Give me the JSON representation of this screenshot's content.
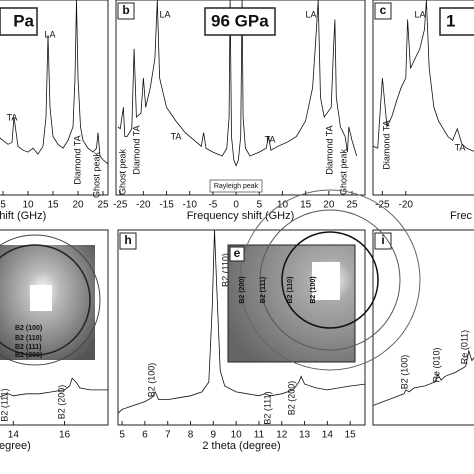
{
  "chart_data": [
    {
      "type": "line",
      "title": "Pa",
      "xlabel": "shift (GHz)",
      "xlim": [
        4,
        26
      ],
      "ylim": [
        0,
        100
      ],
      "xticks": [
        5,
        10,
        15,
        20,
        25
      ],
      "x": [
        4,
        5,
        6,
        6.8,
        7.2,
        8,
        9,
        10,
        11,
        12,
        13,
        13.6,
        14,
        14.4,
        15,
        16,
        17,
        18,
        19,
        19.4,
        19.7,
        20,
        20.5,
        21,
        22,
        23,
        23.7,
        24,
        24.4,
        25,
        26
      ],
      "values": [
        30,
        28,
        26,
        27,
        40,
        25,
        23,
        22,
        24,
        21,
        25,
        40,
        82,
        45,
        30,
        26,
        24,
        28,
        35,
        60,
        100,
        60,
        35,
        28,
        24,
        22,
        24,
        32,
        20,
        18,
        16
      ],
      "annotations": [
        "LA",
        "TA",
        "Diamond TA",
        "Ghost peak"
      ]
    },
    {
      "type": "line",
      "panel": "b",
      "title": "96 GPa",
      "xlabel": "Frequency shift (GHz)",
      "xlim": [
        -25.9,
        27.8
      ],
      "ylim": [
        0,
        100
      ],
      "xticks": [
        -25,
        -20,
        -15,
        -10,
        -5,
        0,
        5,
        10,
        15,
        20,
        25
      ],
      "x": [
        -25.5,
        -25,
        -24.3,
        -24,
        -23.5,
        -22.5,
        -22,
        -21.5,
        -20.5,
        -20,
        -19.5,
        -18.5,
        -17.5,
        -17,
        -16.5,
        -15,
        -13,
        -11,
        -9,
        -7.5,
        -7,
        -6.5,
        -5,
        -3,
        -2,
        -1.5,
        -1.3,
        -1,
        -0.5,
        0,
        0.5,
        1,
        1.3,
        1.5,
        2,
        3,
        5,
        6.5,
        7,
        7.5,
        9,
        11,
        13,
        15,
        16.5,
        17.2,
        17.7,
        18.2,
        19,
        20.5,
        21,
        21.3,
        21.6,
        22.5,
        23.5,
        24,
        24.3,
        25,
        26
      ],
      "values": [
        35,
        34,
        45,
        30,
        30,
        34,
        75,
        40,
        42,
        60,
        45,
        55,
        70,
        100,
        60,
        45,
        38,
        32,
        28,
        25,
        32,
        24,
        22,
        20,
        24,
        40,
        100,
        30,
        18,
        15,
        18,
        30,
        100,
        40,
        24,
        20,
        22,
        24,
        30,
        23,
        25,
        27,
        30,
        38,
        55,
        80,
        100,
        50,
        40,
        45,
        75,
        90,
        50,
        35,
        30,
        22,
        35,
        28,
        20
      ],
      "annotations": [
        "Ghost peak",
        "Diamond TA",
        "LA",
        "TA",
        "Rayleigh peak",
        "TA",
        "LA",
        "Diamond TA",
        "Ghost peak"
      ]
    },
    {
      "type": "line",
      "panel": "c",
      "title": "1",
      "xlabel": "Frec",
      "xlim": [
        -27,
        -5
      ],
      "ylim": [
        0,
        100
      ],
      "xticks": [
        -25,
        -20
      ],
      "x": [
        -27,
        -26,
        -25,
        -24,
        -23,
        -22,
        -21,
        -20,
        -19.6,
        -19,
        -18,
        -17,
        -16,
        -15.6,
        -15,
        -14,
        -13,
        -12,
        -11,
        -10,
        -9,
        -8,
        -7,
        -6,
        -5
      ],
      "values": [
        25,
        24,
        60,
        35,
        40,
        48,
        55,
        60,
        90,
        65,
        70,
        75,
        85,
        100,
        65,
        45,
        38,
        34,
        30,
        28,
        34,
        26,
        24,
        23,
        22
      ],
      "annotations": [
        "Diamond TA",
        "LA",
        "TA"
      ]
    },
    {
      "type": "line",
      "xlabel": "(degree)",
      "xlim": [
        13.4,
        17.7
      ],
      "ylim": [
        0,
        100
      ],
      "xticks": [
        14,
        16
      ],
      "x": [
        13.4,
        13.6,
        13.8,
        14,
        14.5,
        15,
        15.5,
        16,
        16.2,
        16.3,
        16.45,
        16.6,
        17,
        17.5,
        17.7
      ],
      "values": [
        14,
        15,
        16,
        15,
        16,
        16,
        17,
        18,
        20,
        24,
        22,
        19,
        18,
        18,
        18
      ],
      "annotations": [
        "B2 (111)",
        "B2 (200)"
      ]
    },
    {
      "type": "line",
      "panel": "h",
      "xlabel": "2 theta (degree)",
      "xlim": [
        4.82,
        15.65
      ],
      "ylim": [
        0,
        100
      ],
      "xticks": [
        5,
        6,
        7,
        8,
        9,
        10,
        11,
        12,
        13,
        14,
        15
      ],
      "x": [
        4.82,
        5,
        5.5,
        6,
        6.3,
        6.45,
        6.6,
        7,
        7.5,
        8,
        8.5,
        8.8,
        8.95,
        9.05,
        9.15,
        9.3,
        9.5,
        10,
        10.5,
        11,
        11.25,
        11.5,
        12,
        12.5,
        12.75,
        12.85,
        13,
        13.5,
        14,
        14.5,
        15,
        15.65
      ],
      "values": [
        6,
        8,
        10,
        12,
        14,
        17,
        13,
        13,
        14,
        15,
        17,
        22,
        60,
        100,
        70,
        28,
        20,
        17,
        16,
        15,
        16,
        15,
        16,
        18,
        22,
        25,
        21,
        19,
        18,
        19,
        20,
        21
      ],
      "annotations": [
        "B2 (100)",
        "B2 (110)",
        "B2 (111)",
        "B2 (200)"
      ]
    },
    {
      "type": "line",
      "panel": "i",
      "xlim": [
        0,
        10
      ],
      "ylim": [
        0,
        100
      ],
      "xticks": [],
      "x": [
        0,
        1,
        2,
        3,
        3.2,
        3.5,
        4,
        5,
        6,
        6.3,
        6.6,
        7,
        8,
        9,
        9.3,
        9.6,
        10
      ],
      "values": [
        10,
        12,
        14,
        16,
        18,
        17,
        19,
        20,
        22,
        26,
        23,
        25,
        27,
        30,
        38,
        33,
        36
      ],
      "annotations": [
        "B2 (100)",
        "Re (010)",
        "Re (011)"
      ]
    }
  ],
  "insets": {
    "g": {
      "labels": [
        "B2 (100)",
        "B2 (110)",
        "B2 (111)",
        "B2 (200)"
      ]
    },
    "e": {
      "panel": "e",
      "labels": [
        "B2 (200)",
        "B2 (111)",
        "B2 (110)",
        "B2 (100)"
      ]
    }
  }
}
